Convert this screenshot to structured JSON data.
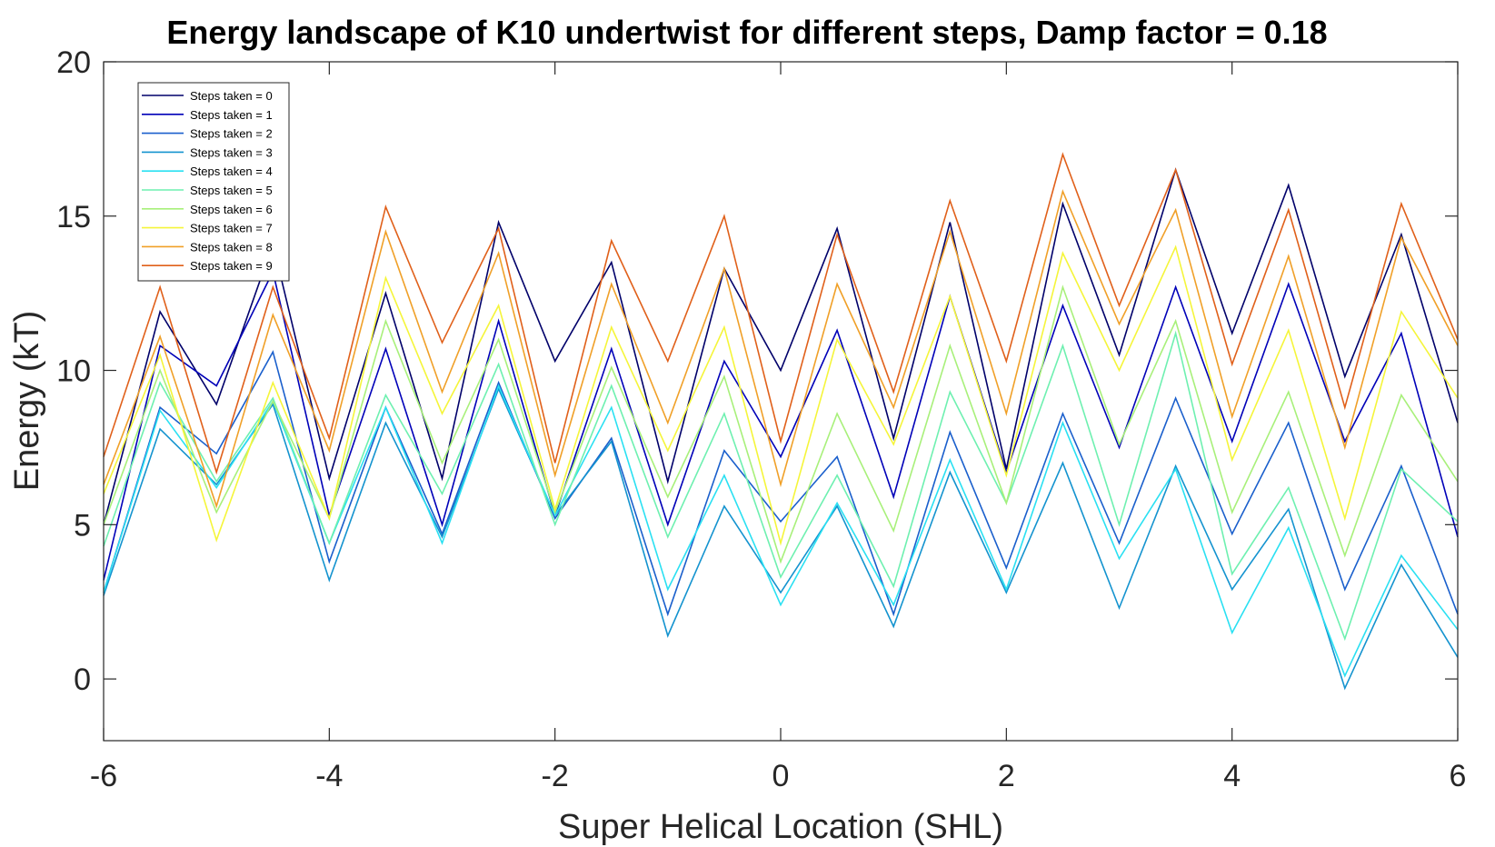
{
  "chart_data": {
    "type": "line",
    "title": "Energy landscape of K10 undertwist for different steps, Damp factor = 0.18",
    "xlabel": "Super Helical Location (SHL)",
    "ylabel": "Energy (kT)",
    "xlim": [
      -6,
      6
    ],
    "ylim": [
      -2,
      20
    ],
    "xticks": [
      -6,
      -4,
      -2,
      0,
      2,
      4,
      6
    ],
    "xtick_labels": [
      "-6",
      "-4",
      "-2",
      "0",
      "2",
      "4",
      "6"
    ],
    "yticks": [
      0,
      5,
      10,
      15,
      20
    ],
    "ytick_labels": [
      "0",
      "5",
      "10",
      "15",
      "20"
    ],
    "grid": false,
    "legend_position": "top-left",
    "x": [
      -6,
      -5.5,
      -5,
      -4.5,
      -4,
      -3.5,
      -3,
      -2.5,
      -2,
      -1.5,
      -1,
      -0.5,
      0,
      0.5,
      1,
      1.5,
      2,
      2.5,
      3,
      3.5,
      4,
      4.5,
      5,
      5.5,
      6
    ],
    "series": [
      {
        "name": "Steps taken = 0",
        "color": "#00006a",
        "values": [
          5.0,
          11.9,
          8.9,
          14.1,
          6.5,
          12.5,
          6.5,
          14.8,
          10.3,
          13.5,
          6.4,
          13.3,
          10.0,
          14.6,
          7.8,
          14.8,
          6.8,
          15.4,
          10.5,
          16.5,
          11.2,
          16.0,
          9.8,
          14.4,
          8.3
        ]
      },
      {
        "name": "Steps taken = 1",
        "color": "#0000b8",
        "values": [
          3.2,
          10.8,
          9.5,
          13.2,
          5.3,
          10.7,
          5.0,
          11.6,
          5.3,
          10.7,
          5.0,
          10.3,
          7.2,
          11.3,
          5.9,
          12.4,
          6.7,
          12.1,
          7.5,
          12.7,
          7.7,
          12.8,
          7.7,
          11.2,
          4.6
        ]
      },
      {
        "name": "Steps taken = 2",
        "color": "#1a5fcc",
        "values": [
          2.8,
          8.8,
          7.3,
          10.6,
          3.8,
          8.8,
          4.7,
          9.6,
          5.2,
          7.8,
          2.1,
          7.4,
          5.1,
          7.2,
          2.1,
          8.0,
          3.6,
          8.6,
          4.4,
          9.1,
          4.7,
          8.3,
          2.9,
          6.9,
          2.1
        ]
      },
      {
        "name": "Steps taken = 3",
        "color": "#1493cf",
        "values": [
          2.7,
          8.1,
          6.3,
          8.9,
          3.2,
          8.3,
          4.6,
          9.4,
          5.3,
          7.7,
          1.4,
          5.6,
          2.8,
          5.6,
          1.7,
          6.7,
          2.8,
          7.0,
          2.3,
          6.9,
          2.9,
          5.5,
          -0.3,
          3.7,
          0.7
        ]
      },
      {
        "name": "Steps taken = 4",
        "color": "#2ae0f2",
        "values": [
          2.8,
          8.7,
          6.2,
          9.0,
          4.4,
          8.8,
          4.4,
          9.5,
          5.3,
          8.8,
          2.9,
          6.6,
          2.4,
          5.7,
          2.4,
          7.1,
          2.9,
          8.3,
          3.9,
          6.8,
          1.5,
          4.9,
          0.1,
          4.0,
          1.6
        ]
      },
      {
        "name": "Steps taken = 5",
        "color": "#6ef0b0",
        "values": [
          4.3,
          9.6,
          6.4,
          9.1,
          4.4,
          9.2,
          6.0,
          10.2,
          5.0,
          9.5,
          4.6,
          8.6,
          3.3,
          6.6,
          3.0,
          9.3,
          5.7,
          10.8,
          5.0,
          11.2,
          3.4,
          6.2,
          1.3,
          6.8,
          5.1
        ]
      },
      {
        "name": "Steps taken = 6",
        "color": "#a8f07a",
        "values": [
          5.0,
          10.0,
          5.4,
          9.0,
          5.2,
          11.6,
          7.0,
          11.0,
          5.4,
          10.1,
          5.9,
          9.8,
          3.8,
          8.6,
          4.8,
          10.8,
          5.7,
          12.7,
          7.6,
          11.6,
          5.4,
          9.3,
          4.0,
          9.2,
          6.4
        ]
      },
      {
        "name": "Steps taken = 7",
        "color": "#f5f53a",
        "values": [
          6.0,
          10.5,
          4.5,
          9.6,
          5.2,
          13.0,
          8.6,
          12.1,
          5.5,
          11.4,
          7.4,
          11.4,
          4.4,
          11.0,
          7.6,
          12.4,
          6.6,
          13.8,
          10.0,
          14.0,
          7.1,
          11.3,
          5.2,
          11.9,
          9.1
        ]
      },
      {
        "name": "Steps taken = 8",
        "color": "#f0a028",
        "values": [
          6.3,
          11.1,
          5.6,
          11.8,
          7.4,
          14.5,
          9.3,
          13.8,
          6.6,
          12.8,
          8.3,
          13.3,
          6.3,
          12.8,
          8.8,
          14.5,
          8.6,
          15.8,
          11.5,
          15.2,
          8.5,
          13.7,
          7.5,
          14.3,
          10.8
        ]
      },
      {
        "name": "Steps taken = 9",
        "color": "#e0601a",
        "values": [
          7.2,
          12.7,
          6.7,
          12.7,
          7.8,
          15.3,
          10.9,
          14.6,
          7.0,
          14.2,
          10.3,
          15.0,
          7.7,
          14.4,
          9.3,
          15.5,
          10.3,
          17.0,
          12.1,
          16.5,
          10.2,
          15.2,
          8.8,
          15.4,
          11.0
        ]
      }
    ]
  }
}
